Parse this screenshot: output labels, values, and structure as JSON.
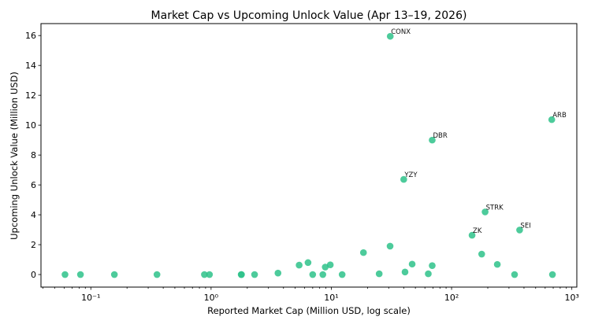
{
  "chart_data": {
    "type": "scatter",
    "title": "Market Cap vs Upcoming Unlock Value (Apr 13–19, 2026)",
    "xlabel": "Reported Market Cap (Million USD, log scale)",
    "ylabel": "Upcoming Unlock Value (Million USD)",
    "xscale": "log",
    "xlim": [
      0.0385,
      1100
    ],
    "ylim": [
      -0.84,
      16.8
    ],
    "x_ticks": [
      {
        "value": 0.1,
        "label": "10⁻¹"
      },
      {
        "value": 1,
        "label": "10⁰"
      },
      {
        "value": 10,
        "label": "10¹"
      },
      {
        "value": 100,
        "label": "10²"
      },
      {
        "value": 1000,
        "label": "10³"
      }
    ],
    "y_ticks": [
      0,
      2,
      4,
      6,
      8,
      10,
      12,
      14,
      16
    ],
    "grid": false,
    "color": "#2ec28a",
    "points": [
      {
        "x": 0.061,
        "y": 0
      },
      {
        "x": 0.082,
        "y": 0
      },
      {
        "x": 0.157,
        "y": 0
      },
      {
        "x": 0.355,
        "y": 0
      },
      {
        "x": 0.88,
        "y": 0
      },
      {
        "x": 0.97,
        "y": 0
      },
      {
        "x": 1.78,
        "y": 0
      },
      {
        "x": 1.79,
        "y": 0
      },
      {
        "x": 2.3,
        "y": 0
      },
      {
        "x": 3.6,
        "y": 0.1
      },
      {
        "x": 5.4,
        "y": 0.63
      },
      {
        "x": 6.4,
        "y": 0.8
      },
      {
        "x": 7.0,
        "y": 0
      },
      {
        "x": 8.5,
        "y": 0
      },
      {
        "x": 8.9,
        "y": 0.5
      },
      {
        "x": 9.8,
        "y": 0.65
      },
      {
        "x": 12.3,
        "y": 0
      },
      {
        "x": 18.5,
        "y": 1.47
      },
      {
        "x": 25,
        "y": 0.05
      },
      {
        "x": 30.8,
        "y": 1.9
      },
      {
        "x": 30.9,
        "y": 15.95,
        "label": "CONX"
      },
      {
        "x": 40,
        "y": 6.37,
        "label": "YZY"
      },
      {
        "x": 41,
        "y": 0.17
      },
      {
        "x": 47,
        "y": 0.7
      },
      {
        "x": 64,
        "y": 0.05
      },
      {
        "x": 69,
        "y": 0.6
      },
      {
        "x": 69,
        "y": 9.0,
        "label": "DBR"
      },
      {
        "x": 148,
        "y": 2.63,
        "label": "ZK"
      },
      {
        "x": 178,
        "y": 1.37
      },
      {
        "x": 190,
        "y": 4.19,
        "label": "STRK"
      },
      {
        "x": 240,
        "y": 0.68
      },
      {
        "x": 334,
        "y": 0
      },
      {
        "x": 368,
        "y": 2.98,
        "label": "SEI"
      },
      {
        "x": 681,
        "y": 10.37,
        "label": "ARB"
      },
      {
        "x": 690,
        "y": 0
      }
    ]
  }
}
